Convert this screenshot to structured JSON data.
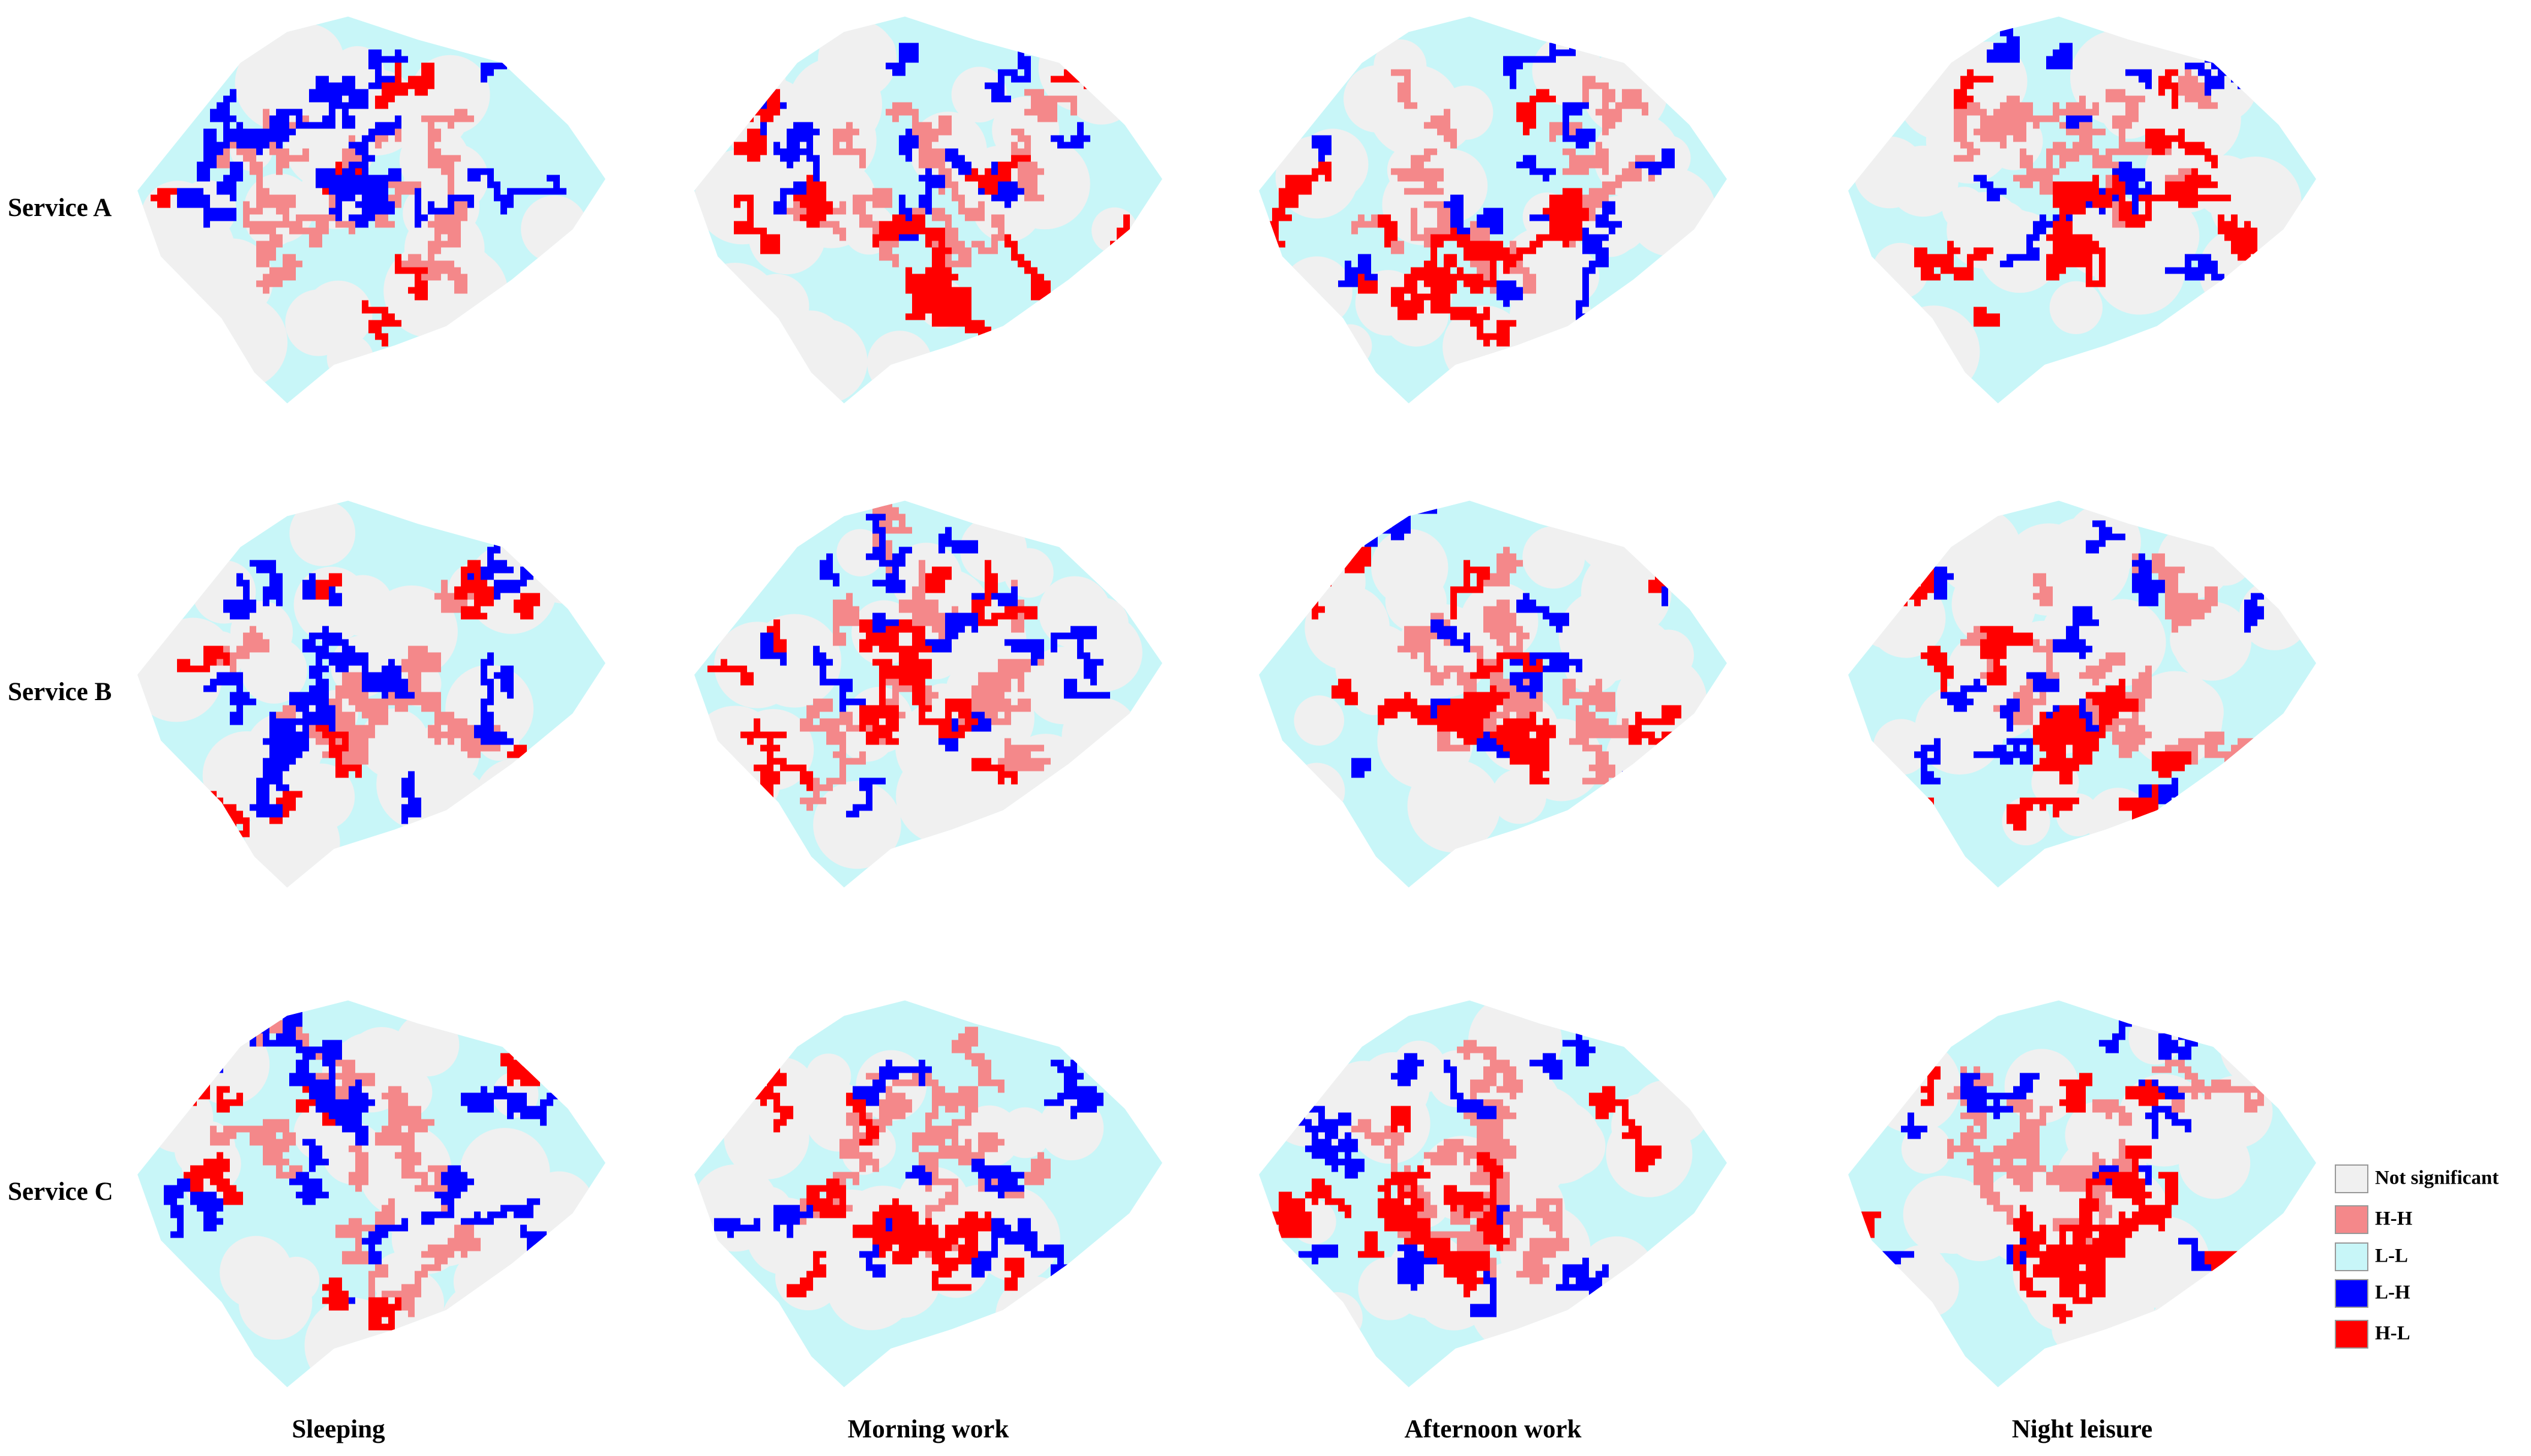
{
  "rows": [
    "Service A",
    "Service B",
    "Service C"
  ],
  "columns": [
    "Sleeping",
    "Morning work",
    "Afternoon work",
    "Night leisure"
  ],
  "legend": [
    {
      "label": "Not significant",
      "color": "#f0f0f0"
    },
    {
      "label": "H-H",
      "color": "#f4888a"
    },
    {
      "label": "L-L",
      "color": "#c8f6f8"
    },
    {
      "label": "L-H",
      "color": "#0000ff"
    },
    {
      "label": "H-L",
      "color": "#ff0000"
    }
  ]
}
